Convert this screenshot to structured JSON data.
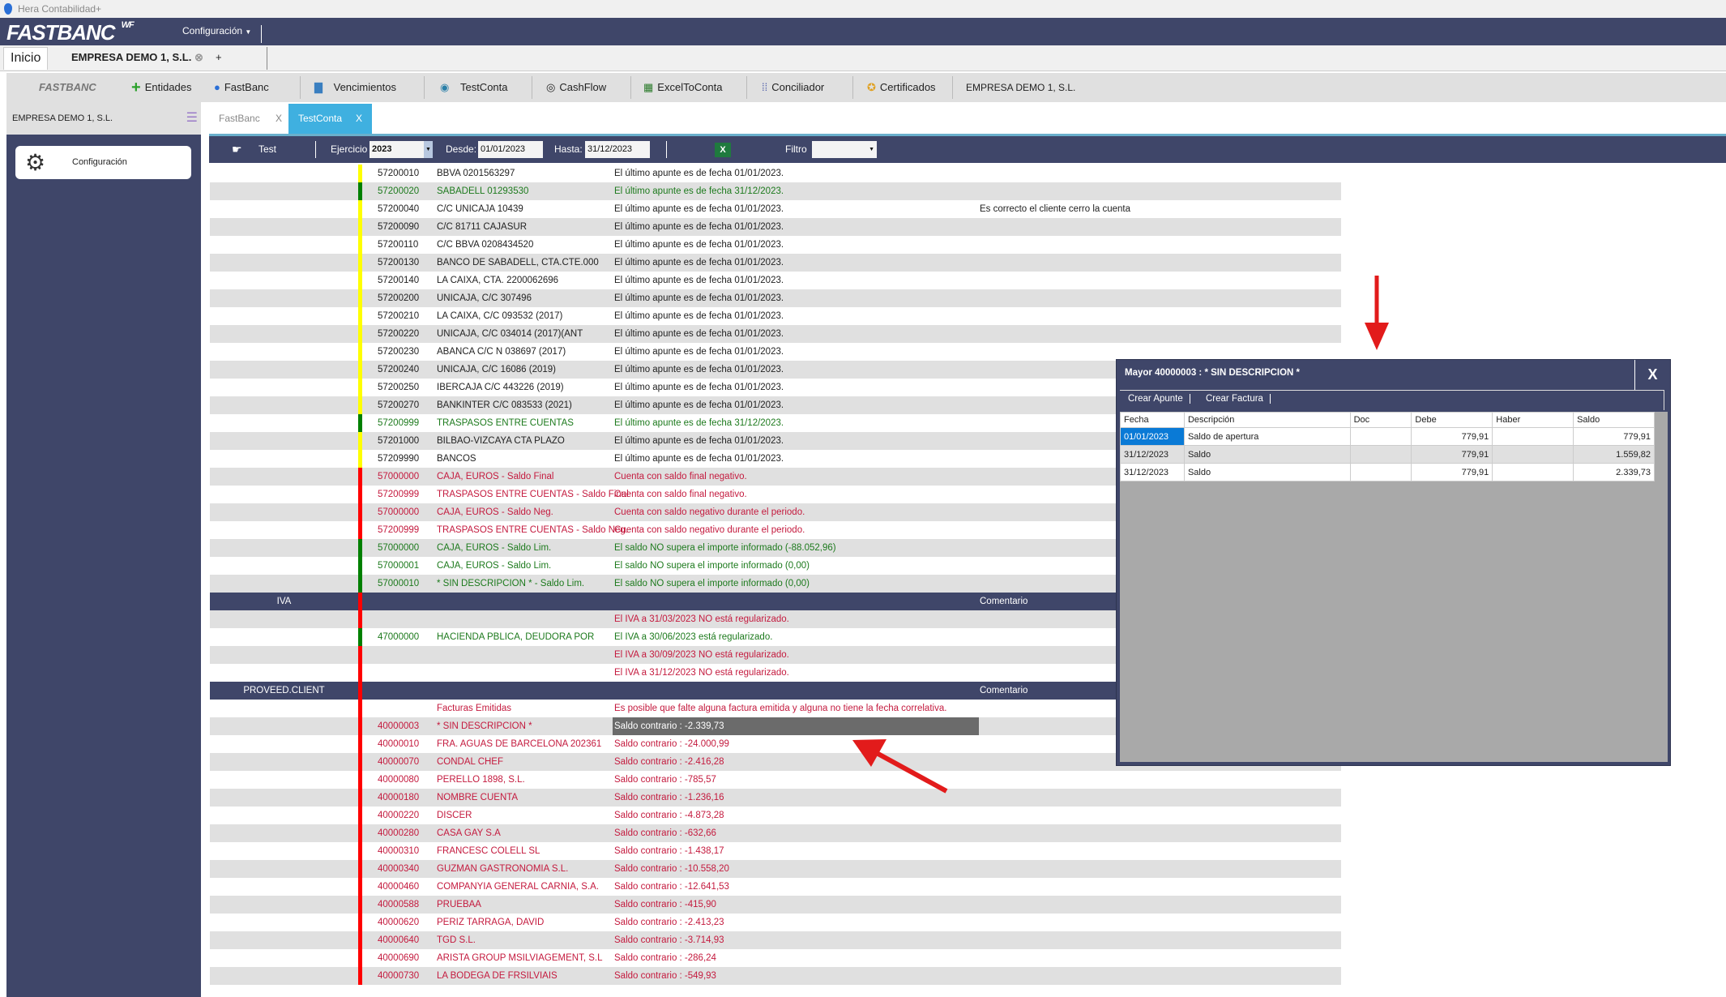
{
  "window": {
    "title": "Hera Contabilidad+"
  },
  "header": {
    "logo": "FASTBANC",
    "logo_sup": "WF",
    "menu": "Configuración"
  },
  "tabs": {
    "home": "Inicio",
    "company": "EMPRESA DEMO 1, S.L.",
    "add": "+"
  },
  "toolbar": {
    "brand": "FASTBANC",
    "items": [
      "Entidades",
      "FastBanc",
      "Vencimientos",
      "TestConta",
      "CashFlow",
      "ExcelToConta",
      "Conciliador",
      "Certificados"
    ],
    "company": "EMPRESA DEMO 1, S.L."
  },
  "sidebar": {
    "company": "EMPRESA DEMO 1, S.L.",
    "config": "Configuración"
  },
  "main_tabs": [
    {
      "label": "FastBanc",
      "close": "X"
    },
    {
      "label": "TestConta",
      "close": "X"
    }
  ],
  "filter": {
    "test": "Test",
    "ejercicio_label": "Ejercicio",
    "ejercicio": "2023",
    "desde_label": "Desde:",
    "desde": "01/01/2023",
    "hasta_label": "Hasta:",
    "hasta": "31/12/2023",
    "filtro_label": "Filtro",
    "filtro": ""
  },
  "colors": {
    "accent": "#3f4669",
    "tab_active": "#3fb0e0",
    "yellow": "#ffff00",
    "green": "#008000",
    "red": "#ff0000"
  },
  "rows": [
    {
      "s": "y",
      "code": "57200010",
      "name": "BBVA 0201563297",
      "msg": "El último apunte es de fecha 01/01/2023."
    },
    {
      "s": "g",
      "code": "57200020",
      "name": "SABADELL 01293530",
      "msg": "El último apunte es de fecha 31/12/2023."
    },
    {
      "s": "y",
      "code": "57200040",
      "name": "C/C UNICAJA 10439",
      "msg": "El último apunte es de fecha 01/01/2023.",
      "com": "Es correcto el cliente cerro la cuenta"
    },
    {
      "s": "y",
      "code": "57200090",
      "name": "C/C 81711 CAJASUR",
      "msg": "El último apunte es de fecha 01/01/2023."
    },
    {
      "s": "y",
      "code": "57200110",
      "name": "C/C BBVA 0208434520",
      "msg": "El último apunte es de fecha 01/01/2023."
    },
    {
      "s": "y",
      "code": "57200130",
      "name": "BANCO DE SABADELL, CTA.CTE.000",
      "msg": "El último apunte es de fecha 01/01/2023."
    },
    {
      "s": "y",
      "code": "57200140",
      "name": "LA CAIXA, CTA. 2200062696",
      "msg": "El último apunte es de fecha 01/01/2023."
    },
    {
      "s": "y",
      "code": "57200200",
      "name": "UNICAJA, C/C 307496",
      "msg": "El último apunte es de fecha 01/01/2023."
    },
    {
      "s": "y",
      "code": "57200210",
      "name": "LA CAIXA, C/C 093532 (2017)",
      "msg": "El último apunte es de fecha 01/01/2023."
    },
    {
      "s": "y",
      "code": "57200220",
      "name": "UNICAJA, C/C 034014 (2017)(ANT",
      "msg": "El último apunte es de fecha 01/01/2023."
    },
    {
      "s": "y",
      "code": "57200230",
      "name": "ABANCA C/C N 038697 (2017)",
      "msg": "El último apunte es de fecha 01/01/2023."
    },
    {
      "s": "y",
      "code": "57200240",
      "name": "UNICAJA, C/C 16086 (2019)",
      "msg": "El último apunte es de fecha 01/01/2023."
    },
    {
      "s": "y",
      "code": "57200250",
      "name": "IBERCAJA C/C 443226 (2019)",
      "msg": "El último apunte es de fecha 01/01/2023."
    },
    {
      "s": "y",
      "code": "57200270",
      "name": "BANKINTER C/C 083533 (2021)",
      "msg": "El último apunte es de fecha 01/01/2023."
    },
    {
      "s": "g",
      "code": "57200999",
      "name": "TRASPASOS ENTRE CUENTAS",
      "msg": "El último apunte es de fecha 31/12/2023."
    },
    {
      "s": "y",
      "code": "57201000",
      "name": "BILBAO-VIZCAYA CTA PLAZO",
      "msg": "El último apunte es de fecha 01/01/2023."
    },
    {
      "s": "y",
      "code": "57209990",
      "name": "BANCOS",
      "msg": "El último apunte es de fecha 01/01/2023."
    },
    {
      "s": "r",
      "code": "57000000",
      "name": "CAJA, EUROS - Saldo Final",
      "msg": "Cuenta con saldo final negativo."
    },
    {
      "s": "r",
      "code": "57200999",
      "name": "TRASPASOS ENTRE CUENTAS - Saldo Final",
      "msg": "Cuenta con saldo final negativo."
    },
    {
      "s": "r",
      "code": "57000000",
      "name": "CAJA, EUROS - Saldo Neg.",
      "msg": "Cuenta con saldo negativo durante el periodo."
    },
    {
      "s": "r",
      "code": "57200999",
      "name": "TRASPASOS ENTRE CUENTAS - Saldo Neg.",
      "msg": "Cuenta con saldo negativo durante el periodo."
    },
    {
      "s": "g",
      "code": "57000000",
      "name": "CAJA, EUROS - Saldo Lim.",
      "msg": "El saldo NO supera el importe informado (-88.052,96)"
    },
    {
      "s": "g",
      "code": "57000001",
      "name": "CAJA, EUROS - Saldo Lim.",
      "msg": "El saldo NO supera el importe informado (0,00)"
    },
    {
      "s": "g",
      "code": "57000010",
      "name": "* SIN DESCRIPCION * - Saldo Lim.",
      "msg": "El saldo NO supera el importe informado (0,00)"
    },
    {
      "sec": "IVA",
      "com": "Comentario"
    },
    {
      "s": "r",
      "msg": "El IVA a 31/03/2023 NO está regularizado."
    },
    {
      "s": "g",
      "code": "47000000",
      "name": "HACIENDA PBLICA, DEUDORA POR",
      "msg": "El IVA a 30/06/2023 está regularizado."
    },
    {
      "s": "r",
      "msg": "El IVA a 30/09/2023 NO está regularizado."
    },
    {
      "s": "r",
      "msg": "El IVA a 31/12/2023 NO está regularizado."
    },
    {
      "sec": "PROVEED.CLIENT",
      "com": "Comentario"
    },
    {
      "s": "r",
      "name": "Facturas Emitidas",
      "msg": "Es posible que falte alguna factura emitida y alguna no tiene la fecha correlativa."
    },
    {
      "s": "r",
      "code": "40000003",
      "name": "* SIN DESCRIPCION *",
      "msg": "Saldo contrario : -2.339,73",
      "selected": true
    },
    {
      "s": "r",
      "code": "40000010",
      "name": "FRA. AGUAS DE BARCELONA 202361",
      "msg": "Saldo contrario : -24.000,99"
    },
    {
      "s": "r",
      "code": "40000070",
      "name": "CONDAL CHEF",
      "msg": "Saldo contrario : -2.416,28"
    },
    {
      "s": "r",
      "code": "40000080",
      "name": "PERELLO 1898, S.L.",
      "msg": "Saldo contrario : -785,57"
    },
    {
      "s": "r",
      "code": "40000180",
      "name": "NOMBRE CUENTA",
      "msg": "Saldo contrario : -1.236,16"
    },
    {
      "s": "r",
      "code": "40000220",
      "name": "DISCER",
      "msg": "Saldo contrario : -4.873,28"
    },
    {
      "s": "r",
      "code": "40000280",
      "name": "CASA GAY S.A",
      "msg": "Saldo contrario : -632,66"
    },
    {
      "s": "r",
      "code": "40000310",
      "name": "FRANCESC COLELL SL",
      "msg": "Saldo contrario : -1.438,17"
    },
    {
      "s": "r",
      "code": "40000340",
      "name": "GUZMAN GASTRONOMIA S.L.",
      "msg": "Saldo contrario : -10.558,20"
    },
    {
      "s": "r",
      "code": "40000460",
      "name": "COMPANYIA GENERAL CARNIA, S.A.",
      "msg": "Saldo contrario : -12.641,53"
    },
    {
      "s": "r",
      "code": "40000588",
      "name": "PRUEBAA",
      "msg": "Saldo contrario : -415,90"
    },
    {
      "s": "r",
      "code": "40000620",
      "name": "PERIZ TARRAGA, DAVID",
      "msg": "Saldo contrario : -2.413,23"
    },
    {
      "s": "r",
      "code": "40000640",
      "name": "TGD S.L.",
      "msg": "Saldo contrario : -3.714,93"
    },
    {
      "s": "r",
      "code": "40000690",
      "name": "ARISTA GROUP MSILVIAGEMENT, S.L",
      "msg": "Saldo contrario : -286,24"
    },
    {
      "s": "r",
      "code": "40000730",
      "name": "LA BODEGA DE FRSILVIAIS",
      "msg": "Saldo contrario : -549,93"
    }
  ],
  "popup": {
    "title": "Mayor 40000003 : * SIN DESCRIPCION *",
    "close": "X",
    "actions": [
      "Crear Apunte",
      "Crear Factura"
    ],
    "columns": [
      "Fecha",
      "Descripción",
      "Doc",
      "Debe",
      "Haber",
      "Saldo"
    ],
    "rows": [
      [
        "01/01/2023",
        "Saldo de apertura",
        "",
        "779,91",
        "",
        "779,91"
      ],
      [
        "31/12/2023",
        "Saldo",
        "",
        "779,91",
        "",
        "1.559,82"
      ],
      [
        "31/12/2023",
        "Saldo",
        "",
        "779,91",
        "",
        "2.339,73"
      ]
    ]
  }
}
